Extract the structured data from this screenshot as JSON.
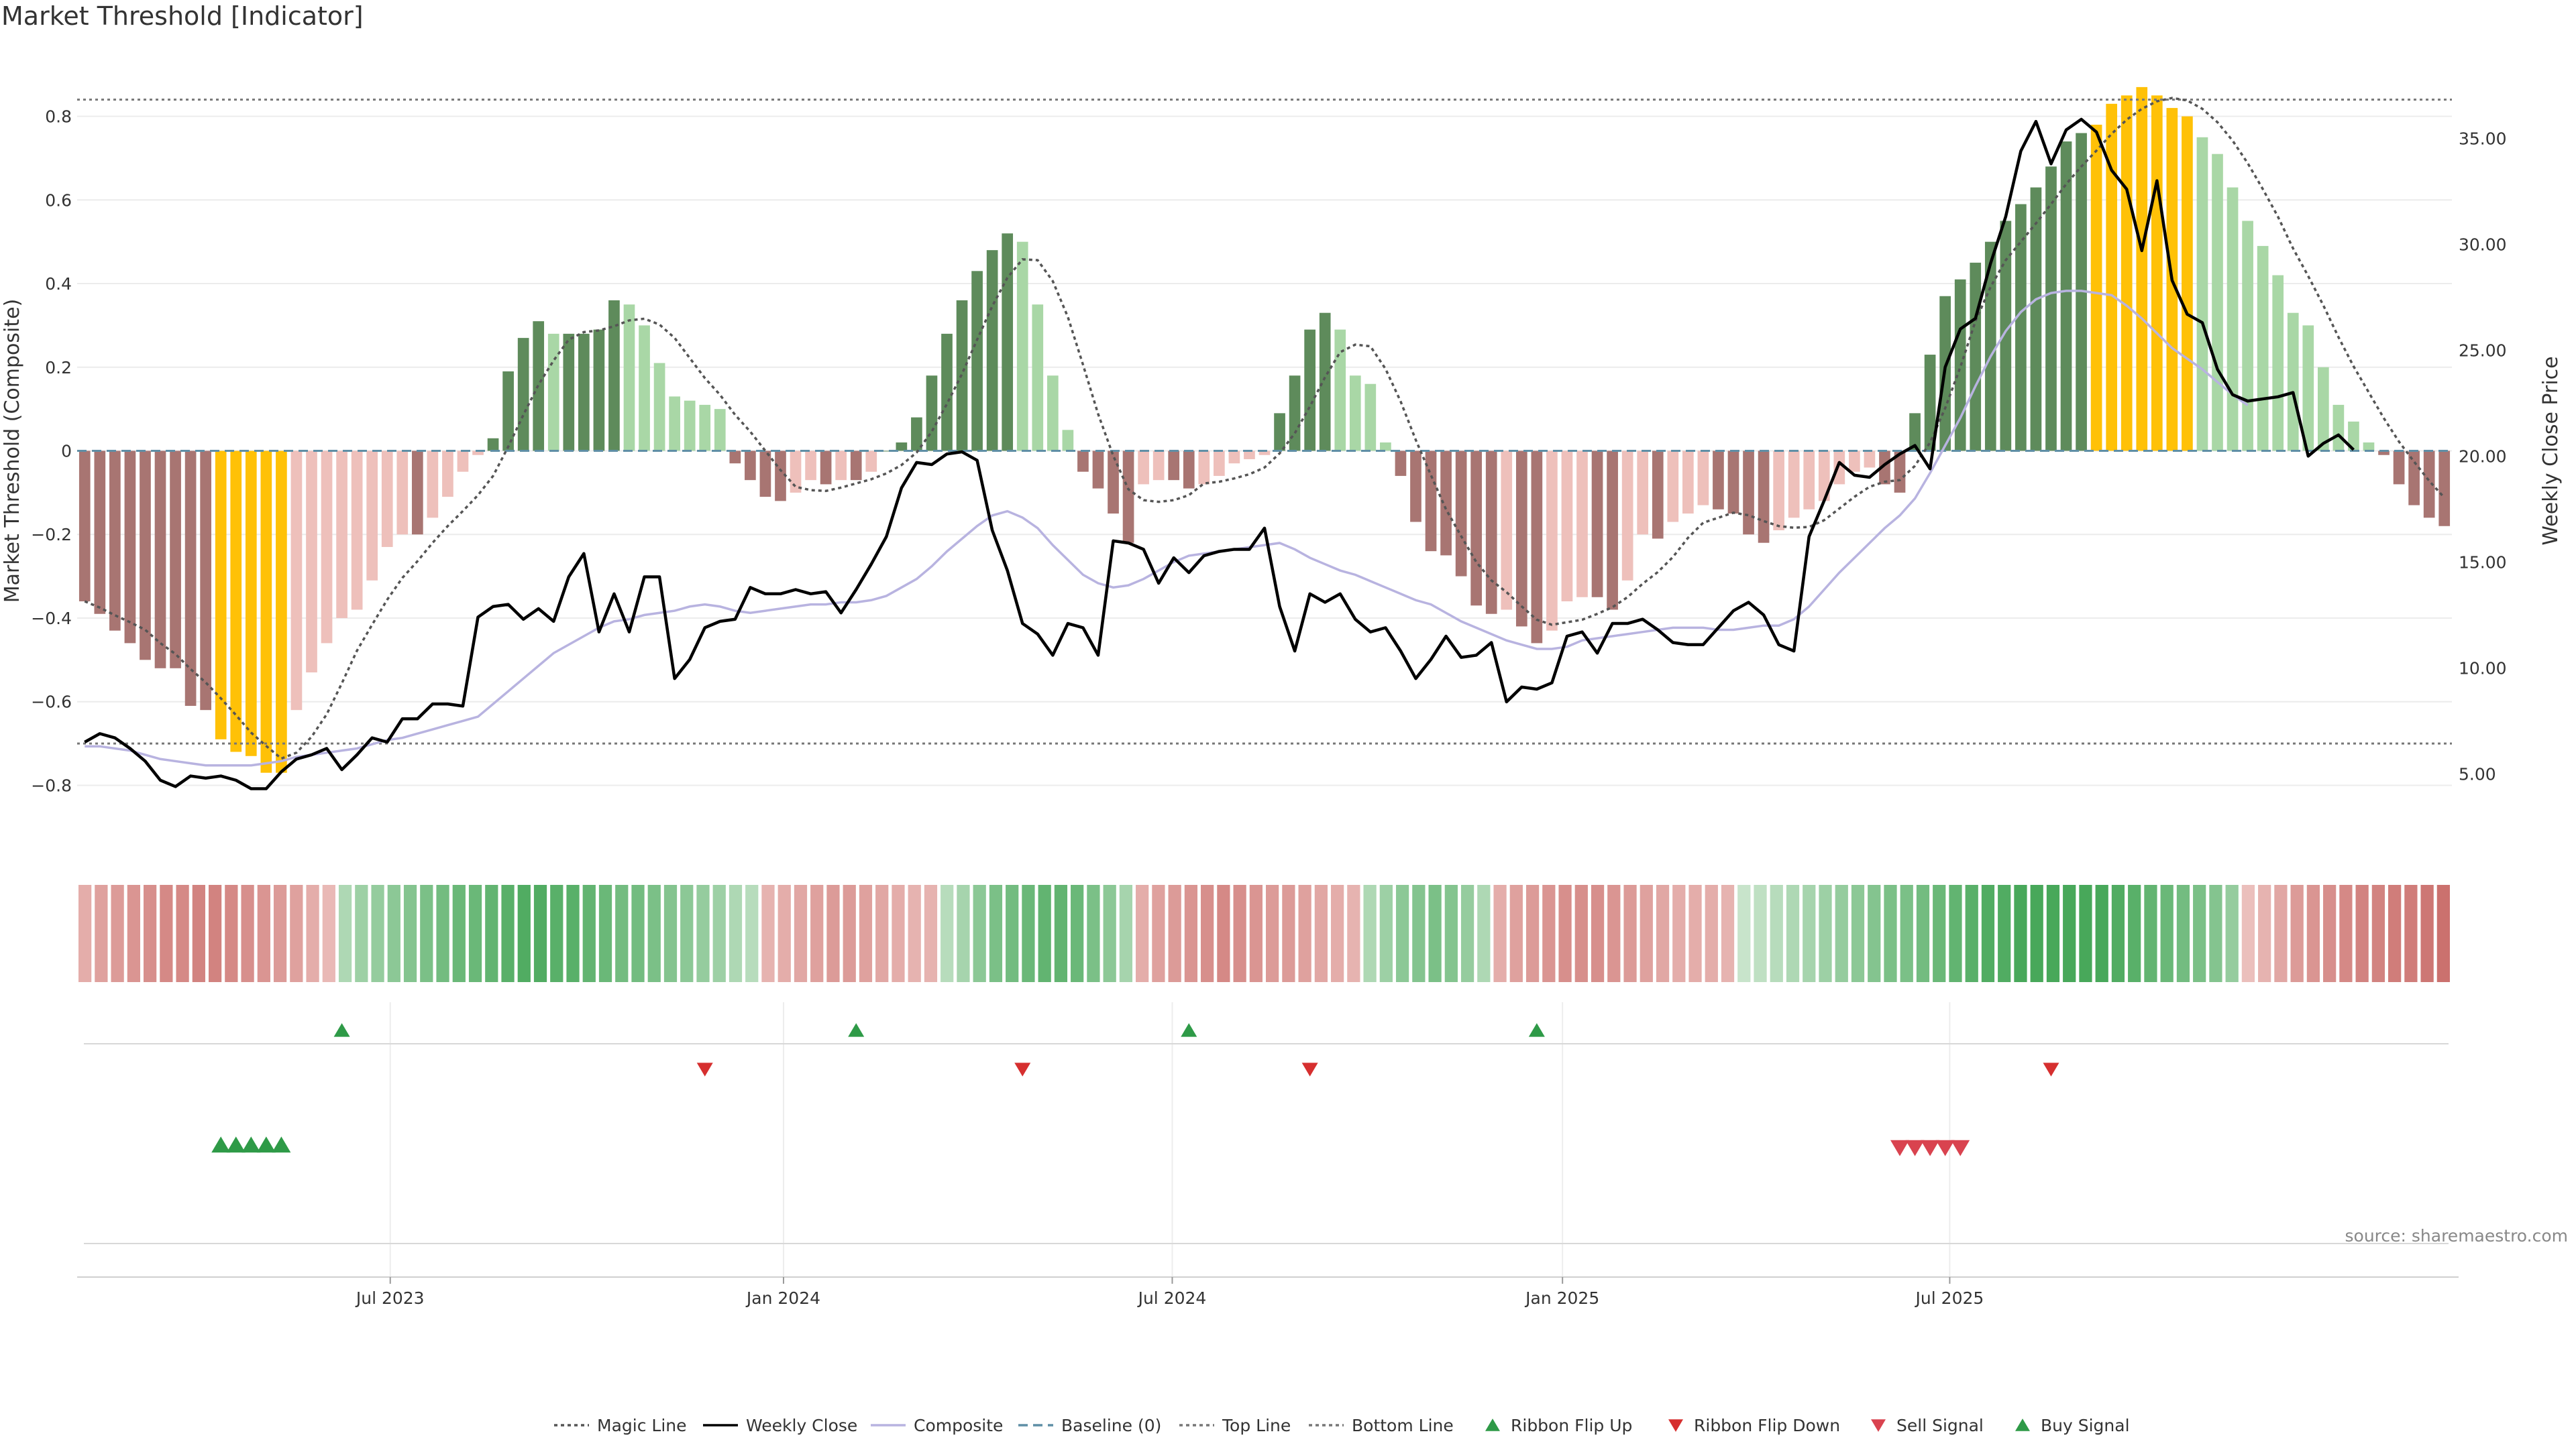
{
  "title": "Market Threshold [Indicator]",
  "source": "source: sharemaestro.com",
  "colors": {
    "magic": "#555555",
    "close": "#000000",
    "composite": "#b8b3e0",
    "baseline": "#5f8fa6",
    "top": "#777777",
    "bottom": "#777777",
    "bar_dark_green": "#5e8b5b",
    "bar_light_green": "#a9d7a6",
    "bar_dark_red": "#a87572",
    "bar_light_red": "#eec0bb",
    "bar_extreme": "#ffc107",
    "flip_up": "#2e9a47",
    "flip_down": "#d62f2f",
    "sell": "#d9434f",
    "buy": "#2e9a47"
  },
  "chart_data": {
    "type": "bar",
    "left_axis": {
      "label": "Market Threshold (Composite)",
      "ylim": [
        -0.95,
        0.95
      ],
      "ticks": [
        "0.8",
        "0.6",
        "0.4",
        "0.2",
        "0",
        "−0.2",
        "−0.4",
        "−0.6",
        "−0.8"
      ]
    },
    "right_axis": {
      "label": "Weekly Close Price",
      "ylim": [
        1.5,
        39.0
      ],
      "ticks": [
        "35.00",
        "30.00",
        "25.00",
        "20.00",
        "15.00",
        "10.00",
        "5.00"
      ]
    },
    "x_ticks": [
      "Jul 2023",
      "Jan 2024",
      "Jul 2024",
      "Jan 2025",
      "Jul 2025"
    ],
    "x_tick_index": [
      20.7,
      46.7,
      72.4,
      98.2,
      123.8
    ],
    "top_line": 0.84,
    "bottom_line": -0.7,
    "composite": [
      -0.36,
      -0.39,
      -0.43,
      -0.46,
      -0.5,
      -0.52,
      -0.52,
      -0.61,
      -0.62,
      -0.69,
      -0.72,
      -0.73,
      -0.77,
      -0.77,
      -0.62,
      -0.53,
      -0.46,
      -0.4,
      -0.38,
      -0.31,
      -0.23,
      -0.2,
      -0.2,
      -0.16,
      -0.11,
      -0.05,
      -0.01,
      0.03,
      0.19,
      0.27,
      0.31,
      0.28,
      0.28,
      0.28,
      0.29,
      0.36,
      0.35,
      0.3,
      0.21,
      0.13,
      0.12,
      0.11,
      0.1,
      -0.03,
      -0.07,
      -0.11,
      -0.12,
      -0.1,
      -0.07,
      -0.08,
      -0.07,
      -0.07,
      -0.05,
      0.0,
      0.02,
      0.08,
      0.18,
      0.28,
      0.36,
      0.43,
      0.48,
      0.52,
      0.5,
      0.35,
      0.18,
      0.05,
      -0.05,
      -0.09,
      -0.15,
      -0.22,
      -0.08,
      -0.07,
      -0.07,
      -0.09,
      -0.08,
      -0.06,
      -0.03,
      -0.02,
      -0.01,
      0.09,
      0.18,
      0.29,
      0.33,
      0.29,
      0.18,
      0.16,
      0.02,
      -0.06,
      -0.17,
      -0.24,
      -0.25,
      -0.3,
      -0.37,
      -0.39,
      -0.38,
      -0.42,
      -0.46,
      -0.43,
      -0.36,
      -0.35,
      -0.35,
      -0.38,
      -0.31,
      -0.2,
      -0.21,
      -0.17,
      -0.15,
      -0.13,
      -0.14,
      -0.15,
      -0.2,
      -0.22,
      -0.19,
      -0.16,
      -0.14,
      -0.12,
      -0.08,
      -0.05,
      -0.04,
      -0.08,
      -0.1,
      0.09,
      0.23,
      0.37,
      0.41,
      0.45,
      0.5,
      0.55,
      0.59,
      0.63,
      0.68,
      0.74,
      0.76,
      0.78,
      0.83,
      0.85,
      0.87,
      0.85,
      0.82,
      0.8,
      0.75,
      0.71,
      0.63,
      0.55,
      0.49,
      0.42,
      0.33,
      0.3,
      0.2,
      0.11,
      0.07,
      0.02,
      -0.01,
      -0.08,
      -0.13,
      -0.16,
      -0.18
    ],
    "weekly_close": [
      6.5,
      6.9,
      6.7,
      6.2,
      5.6,
      4.7,
      4.4,
      4.9,
      4.8,
      4.9,
      4.7,
      4.3,
      4.3,
      5.1,
      5.7,
      5.9,
      6.2,
      5.2,
      5.9,
      6.7,
      6.5,
      7.6,
      7.6,
      8.3,
      8.3,
      8.2,
      12.4,
      12.9,
      13.0,
      12.3,
      12.8,
      12.2,
      14.3,
      15.4,
      11.7,
      13.5,
      11.7,
      14.3,
      14.3,
      9.5,
      10.4,
      11.9,
      12.2,
      12.3,
      13.8,
      13.5,
      13.5,
      13.7,
      13.5,
      13.6,
      12.6,
      13.7,
      14.9,
      16.2,
      18.5,
      19.7,
      19.6,
      20.1,
      20.2,
      19.8,
      16.5,
      14.6,
      12.1,
      11.6,
      10.6,
      12.1,
      11.9,
      10.6,
      16.0,
      15.9,
      15.6,
      14.0,
      15.2,
      14.5,
      15.3,
      15.5,
      15.6,
      15.6,
      16.6,
      12.9,
      10.8,
      13.5,
      13.1,
      13.5,
      12.3,
      11.7,
      11.9,
      10.8,
      9.5,
      10.4,
      11.5,
      10.5,
      10.6,
      11.2,
      8.4,
      9.1,
      9.0,
      9.3,
      11.5,
      11.7,
      10.7,
      12.1,
      12.1,
      12.3,
      11.8,
      11.2,
      11.1,
      11.1,
      11.9,
      12.7,
      13.1,
      12.5,
      11.1,
      10.8,
      16.2,
      17.9,
      19.7,
      19.1,
      19.0,
      19.6,
      20.1,
      20.5,
      19.4,
      24.2,
      26.0,
      26.5,
      29.1,
      31.3,
      34.4,
      35.8,
      33.8,
      35.4,
      35.9,
      35.3,
      33.5,
      32.6,
      29.7,
      33.0,
      28.3,
      26.7,
      26.3,
      24.1,
      22.9,
      22.6,
      22.7,
      22.8,
      23.0,
      20.0,
      20.6,
      21.0,
      20.3
    ],
    "composite_line": [
      6.3,
      6.3,
      6.2,
      6.1,
      5.9,
      5.7,
      5.6,
      5.5,
      5.4,
      5.4,
      5.4,
      5.4,
      5.5,
      5.6,
      5.8,
      5.9,
      6.0,
      6.1,
      6.2,
      6.4,
      6.6,
      6.7,
      6.9,
      7.1,
      7.3,
      7.5,
      7.7,
      8.3,
      8.9,
      9.5,
      10.1,
      10.7,
      11.1,
      11.5,
      11.9,
      12.2,
      12.3,
      12.5,
      12.6,
      12.7,
      12.9,
      13.0,
      12.9,
      12.7,
      12.6,
      12.7,
      12.8,
      12.9,
      13.0,
      13.0,
      13.1,
      13.1,
      13.2,
      13.4,
      13.8,
      14.2,
      14.8,
      15.5,
      16.1,
      16.7,
      17.2,
      17.4,
      17.1,
      16.6,
      15.8,
      15.1,
      14.4,
      14.0,
      13.8,
      13.9,
      14.2,
      14.6,
      15.0,
      15.3,
      15.4,
      15.5,
      15.6,
      15.7,
      15.8,
      15.9,
      15.6,
      15.2,
      14.9,
      14.6,
      14.4,
      14.1,
      13.8,
      13.5,
      13.2,
      13.0,
      12.6,
      12.2,
      11.9,
      11.6,
      11.3,
      11.1,
      10.9,
      10.9,
      11.0,
      11.3,
      11.4,
      11.5,
      11.6,
      11.7,
      11.8,
      11.9,
      11.9,
      11.9,
      11.8,
      11.8,
      11.9,
      12.0,
      12.0,
      12.3,
      12.9,
      13.7,
      14.5,
      15.2,
      15.9,
      16.6,
      17.2,
      18.0,
      19.2,
      20.5,
      21.8,
      23.3,
      24.7,
      25.9,
      26.8,
      27.4,
      27.7,
      27.8,
      27.8,
      27.7,
      27.6,
      27.1,
      26.5,
      25.8,
      25.1,
      24.6,
      24.1,
      23.5,
      22.9,
      22.4
    ]
  },
  "ribbon_shades": [
    -0.35,
    -0.45,
    -0.5,
    -0.55,
    -0.6,
    -0.65,
    -0.65,
    -0.7,
    -0.7,
    -0.65,
    -0.6,
    -0.55,
    -0.5,
    -0.45,
    -0.35,
    -0.25,
    0.3,
    0.4,
    0.45,
    0.5,
    0.55,
    0.6,
    0.65,
    0.7,
    0.7,
    0.75,
    0.8,
    0.85,
    0.85,
    0.8,
    0.8,
    0.75,
    0.7,
    0.65,
    0.65,
    0.6,
    0.55,
    0.5,
    0.45,
    0.4,
    0.3,
    0.25,
    -0.3,
    -0.35,
    -0.4,
    -0.45,
    -0.5,
    -0.5,
    -0.45,
    -0.4,
    -0.35,
    -0.3,
    -0.3,
    0.25,
    0.35,
    0.5,
    0.6,
    0.65,
    0.7,
    0.75,
    0.75,
    0.7,
    0.6,
    0.5,
    0.35,
    -0.35,
    -0.45,
    -0.5,
    -0.55,
    -0.6,
    -0.65,
    -0.6,
    -0.55,
    -0.5,
    -0.5,
    -0.45,
    -0.4,
    -0.35,
    -0.3,
    0.3,
    0.4,
    0.5,
    0.55,
    0.6,
    0.55,
    0.45,
    0.3,
    -0.35,
    -0.45,
    -0.5,
    -0.55,
    -0.6,
    -0.6,
    -0.6,
    -0.55,
    -0.5,
    -0.45,
    -0.4,
    -0.35,
    -0.35,
    -0.35,
    -0.3,
    0.15,
    0.2,
    0.25,
    0.3,
    0.35,
    0.4,
    0.45,
    0.5,
    0.55,
    0.6,
    0.6,
    0.65,
    0.7,
    0.75,
    0.8,
    0.85,
    0.85,
    0.9,
    0.9,
    0.9,
    0.9,
    0.9,
    0.9,
    0.85,
    0.8,
    0.75,
    0.7,
    0.65,
    0.6,
    0.55,
    0.45,
    -0.2,
    -0.3,
    -0.4,
    -0.5,
    -0.55,
    -0.6,
    -0.65,
    -0.7,
    -0.7,
    -0.75,
    -0.75,
    -0.8,
    -0.85
  ],
  "flip_up": [
    17,
    51,
    73,
    96
  ],
  "flip_down": [
    41,
    62,
    81,
    130
  ],
  "buy_signals": [
    9,
    10,
    11,
    12,
    13
  ],
  "sell_signals": [
    120,
    121,
    122,
    123,
    124
  ],
  "legend": [
    {
      "key": "magic",
      "label": "Magic Line"
    },
    {
      "key": "close",
      "label": "Weekly Close"
    },
    {
      "key": "composite",
      "label": "Composite"
    },
    {
      "key": "baseline",
      "label": "Baseline (0)"
    },
    {
      "key": "top",
      "label": "Top Line"
    },
    {
      "key": "bottom",
      "label": "Bottom Line"
    },
    {
      "key": "flip_up",
      "label": "Ribbon Flip Up"
    },
    {
      "key": "flip_down",
      "label": "Ribbon Flip Down"
    },
    {
      "key": "sell",
      "label": "Sell Signal"
    },
    {
      "key": "buy",
      "label": "Buy Signal"
    }
  ]
}
